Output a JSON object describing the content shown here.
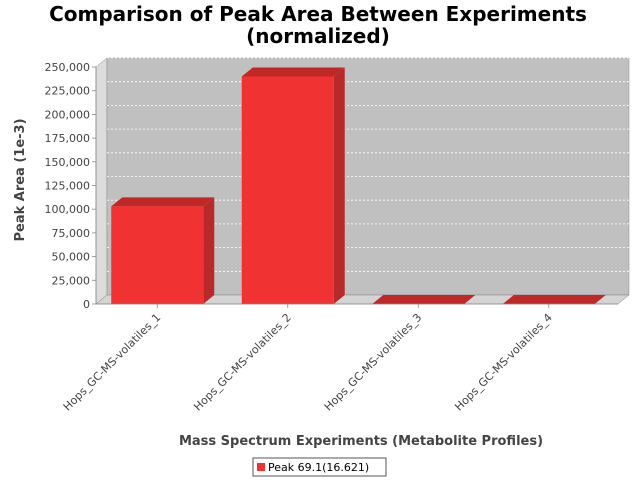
{
  "chart_data": {
    "type": "bar",
    "title_line1": "Comparison of Peak Area Between Experiments",
    "title_line2": "(normalized)",
    "xlabel": "Mass Spectrum Experiments (Metabolite Profiles)",
    "ylabel": "Peak Area (1e-3)",
    "categories": [
      "Hops_GC-MS-volatiles_1",
      "Hops_GC-MS-volatiles_2",
      "Hops_GC-MS-volatiles_3",
      "Hops_GC-MS-volatiles_4"
    ],
    "series": [
      {
        "name": "Peak 69.1(16.621)",
        "values": [
          103000,
          240000,
          0,
          0
        ]
      }
    ],
    "ylim": [
      0,
      250000
    ],
    "yticks": [
      0,
      25000,
      50000,
      75000,
      100000,
      125000,
      150000,
      175000,
      200000,
      225000,
      250000
    ],
    "ytick_labels": [
      "0",
      "25,000",
      "50,000",
      "75,000",
      "100,000",
      "125,000",
      "150,000",
      "175,000",
      "200,000",
      "225,000",
      "250,000"
    ],
    "grid": true,
    "legend_position": "bottom",
    "colors": {
      "bar_front": "#f03232",
      "bar_top": "#c02828",
      "bar_side": "#b82a2a",
      "plot_back": "#c0c0c0",
      "wall_left": "#dcdcdc",
      "floor": "#d4d4d4"
    }
  }
}
